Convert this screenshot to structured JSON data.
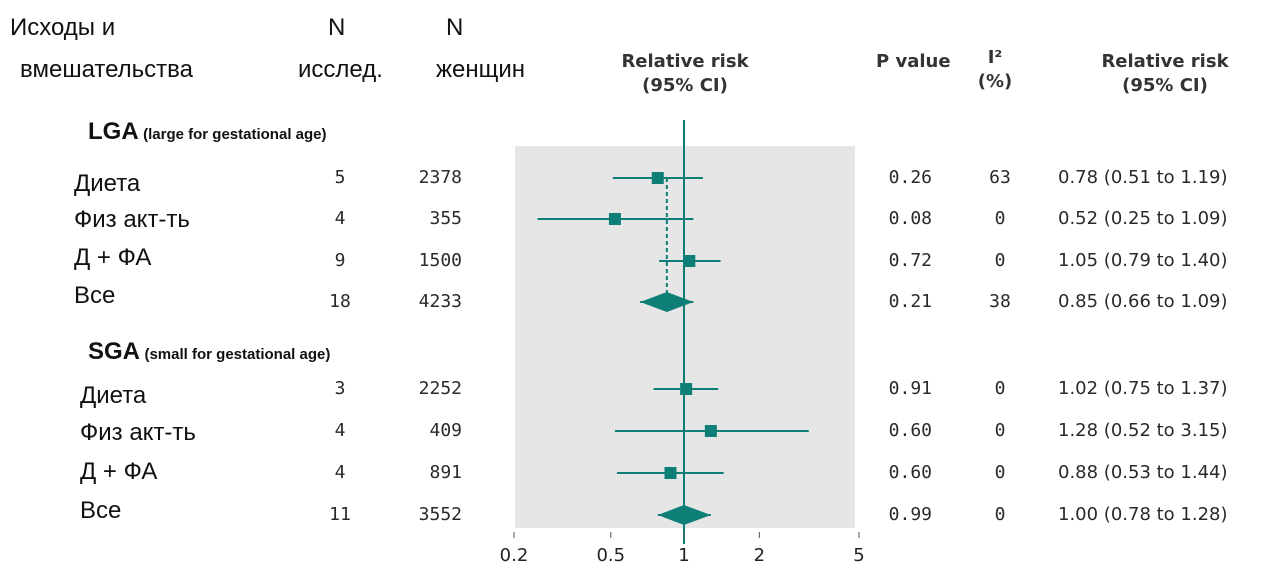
{
  "header": {
    "col_outcome": [
      "Исходы и",
      "вмешательства"
    ],
    "col_n_studies": [
      "N",
      "исслед."
    ],
    "col_n_women": [
      "N",
      "женщин"
    ],
    "col_rr_plot": [
      "Relative risk",
      "(95% CI)"
    ],
    "col_p": "P value",
    "col_i2": [
      "I²",
      "(%)"
    ],
    "col_rr_text": [
      "Relative risk",
      "(95% CI)"
    ]
  },
  "colors": {
    "accent": "#0e7f76",
    "plot_bg": "#e6e6e6"
  },
  "chart_data": {
    "type": "forest",
    "scale": "log",
    "xlim": [
      0.2,
      5
    ],
    "reference_line": 1,
    "x_ticks": [
      "0.2",
      "0.5",
      "1",
      "2",
      "5"
    ],
    "groups": [
      {
        "title": "LGA",
        "subtitle": "(large for gestational age)",
        "pooled_dashed_line": 0.85,
        "rows": [
          {
            "label": "Диета",
            "n_studies": "5",
            "n_women": "2378",
            "rr": 0.78,
            "lo": 0.51,
            "hi": 1.19,
            "p": "0.26",
            "i2": "63",
            "ci_text": "0.78 (0.51 to 1.19)",
            "marker": "square"
          },
          {
            "label": "Физ акт-ть",
            "n_studies": "4",
            "n_women": "355",
            "rr": 0.52,
            "lo": 0.25,
            "hi": 1.09,
            "p": "0.08",
            "i2": "0",
            "ci_text": "0.52 (0.25 to 1.09)",
            "marker": "square"
          },
          {
            "label": "Д + ФА",
            "n_studies": "9",
            "n_women": "1500",
            "rr": 1.05,
            "lo": 0.79,
            "hi": 1.4,
            "p": "0.72",
            "i2": "0",
            "ci_text": "1.05 (0.79 to 1.40)",
            "marker": "square"
          },
          {
            "label": "Все",
            "n_studies": "18",
            "n_women": "4233",
            "rr": 0.85,
            "lo": 0.66,
            "hi": 1.09,
            "p": "0.21",
            "i2": "38",
            "ci_text": "0.85 (0.66 to 1.09)",
            "marker": "diamond"
          }
        ]
      },
      {
        "title": "SGA",
        "subtitle": "(small for gestational age)",
        "rows": [
          {
            "label": "Диета",
            "n_studies": "3",
            "n_women": "2252",
            "rr": 1.02,
            "lo": 0.75,
            "hi": 1.37,
            "p": "0.91",
            "i2": "0",
            "ci_text": "1.02 (0.75 to 1.37)",
            "marker": "square"
          },
          {
            "label": "Физ акт-ть",
            "n_studies": "4",
            "n_women": "409",
            "rr": 1.28,
            "lo": 0.52,
            "hi": 3.15,
            "p": "0.60",
            "i2": "0",
            "ci_text": "1.28 (0.52 to 3.15)",
            "marker": "square"
          },
          {
            "label": "Д + ФА",
            "n_studies": "4",
            "n_women": "891",
            "rr": 0.88,
            "lo": 0.53,
            "hi": 1.44,
            "p": "0.60",
            "i2": "0",
            "ci_text": "0.88 (0.53 to 1.44)",
            "marker": "square"
          },
          {
            "label": "Все",
            "n_studies": "11",
            "n_women": "3552",
            "rr": 1.0,
            "lo": 0.78,
            "hi": 1.28,
            "p": "0.99",
            "i2": "0",
            "ci_text": "1.00 (0.78 to 1.28)",
            "marker": "diamond"
          }
        ]
      }
    ]
  }
}
